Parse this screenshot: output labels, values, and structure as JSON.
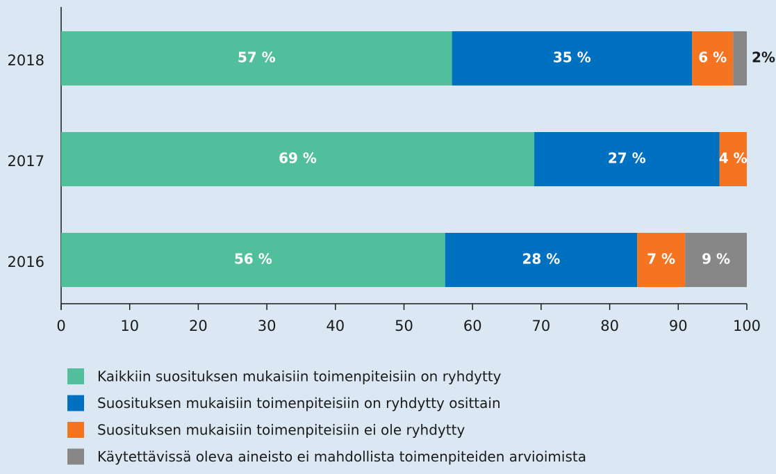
{
  "chart_data": {
    "type": "stacked-bar-horizontal",
    "categories": [
      "2018",
      "2017",
      "2016"
    ],
    "series": [
      {
        "name": "Kaikkiin suosituksen mukaisiin toimenpiteisiin on ryhdytty",
        "color": "#52bf9c",
        "values": [
          57,
          69,
          56
        ],
        "value_labels": [
          "57 %",
          "69 %",
          "56 %"
        ]
      },
      {
        "name": "Suosituksen mukaisiin toimenpiteisiin on ryhdytty osittain",
        "color": "#0070c0",
        "values": [
          35,
          27,
          28
        ],
        "value_labels": [
          "35 %",
          "27 %",
          "28 %"
        ]
      },
      {
        "name": "Suosituksen mukaisiin toimenpiteisiin ei ole ryhdytty",
        "color": "#f47421",
        "values": [
          6,
          4,
          7
        ],
        "value_labels": [
          "6 %",
          "4 %",
          "7 %"
        ]
      },
      {
        "name": "Käytettävissä oleva aineisto ei mahdollista toimenpiteiden arvioimista",
        "color": "#878787",
        "values": [
          2,
          null,
          9
        ],
        "value_labels": [
          "2%",
          null,
          "9 %"
        ]
      }
    ],
    "xlim": [
      0,
      100
    ],
    "xticks": [
      0,
      10,
      20,
      30,
      40,
      50,
      60,
      70,
      80,
      90,
      100
    ]
  }
}
